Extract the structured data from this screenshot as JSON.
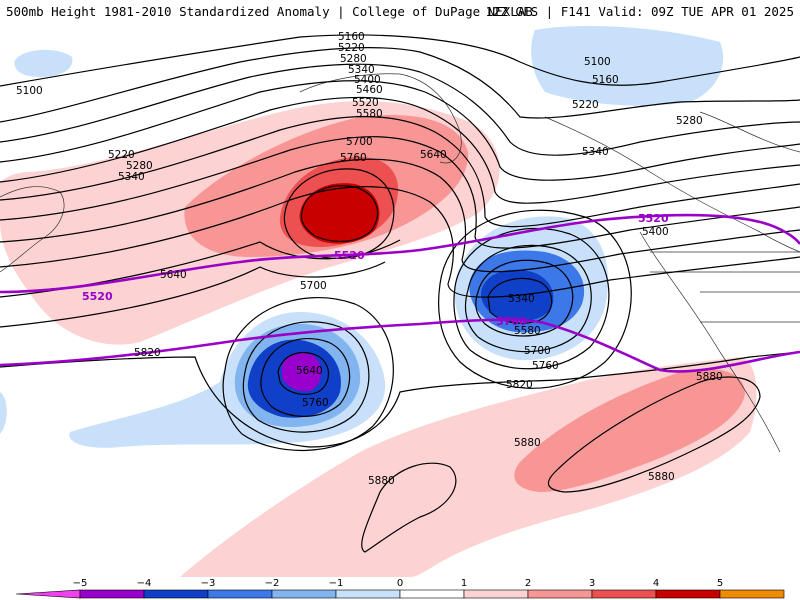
{
  "header": {
    "title": "500mb Height 1981-2010 Standardized Anomaly | College of DuPage NEXLAB",
    "run_info": "12Z GFS | F141 Valid: 09Z TUE APR 01 2025"
  },
  "contour_labels": [
    "5160",
    "5220",
    "5280",
    "5340",
    "5400",
    "5460",
    "5520",
    "5580",
    "5700",
    "5760",
    "5640",
    "5100",
    "5220",
    "5280",
    "5340",
    "5640",
    "5700",
    "5640",
    "5760",
    "5820",
    "5100",
    "5160",
    "5220",
    "5280",
    "5340",
    "5400",
    "5340",
    "5580",
    "5700",
    "5760",
    "5820",
    "5880",
    "5880",
    "5880",
    "5880"
  ],
  "highlight_labels": [
    "5520",
    "5520",
    "5520",
    "5760"
  ],
  "legend": {
    "ticks": [
      "−5",
      "−4",
      "−3",
      "−2",
      "−1",
      "0",
      "1",
      "2",
      "3",
      "4",
      "5"
    ],
    "colors": [
      "#f040f0",
      "#9900cc",
      "#1040c8",
      "#3c78e8",
      "#82b4f0",
      "#c8e0fa",
      "#ffffff",
      "#fcd2d2",
      "#f89696",
      "#ec5050",
      "#c80000",
      "#f08a00",
      "#ffc800"
    ]
  }
}
